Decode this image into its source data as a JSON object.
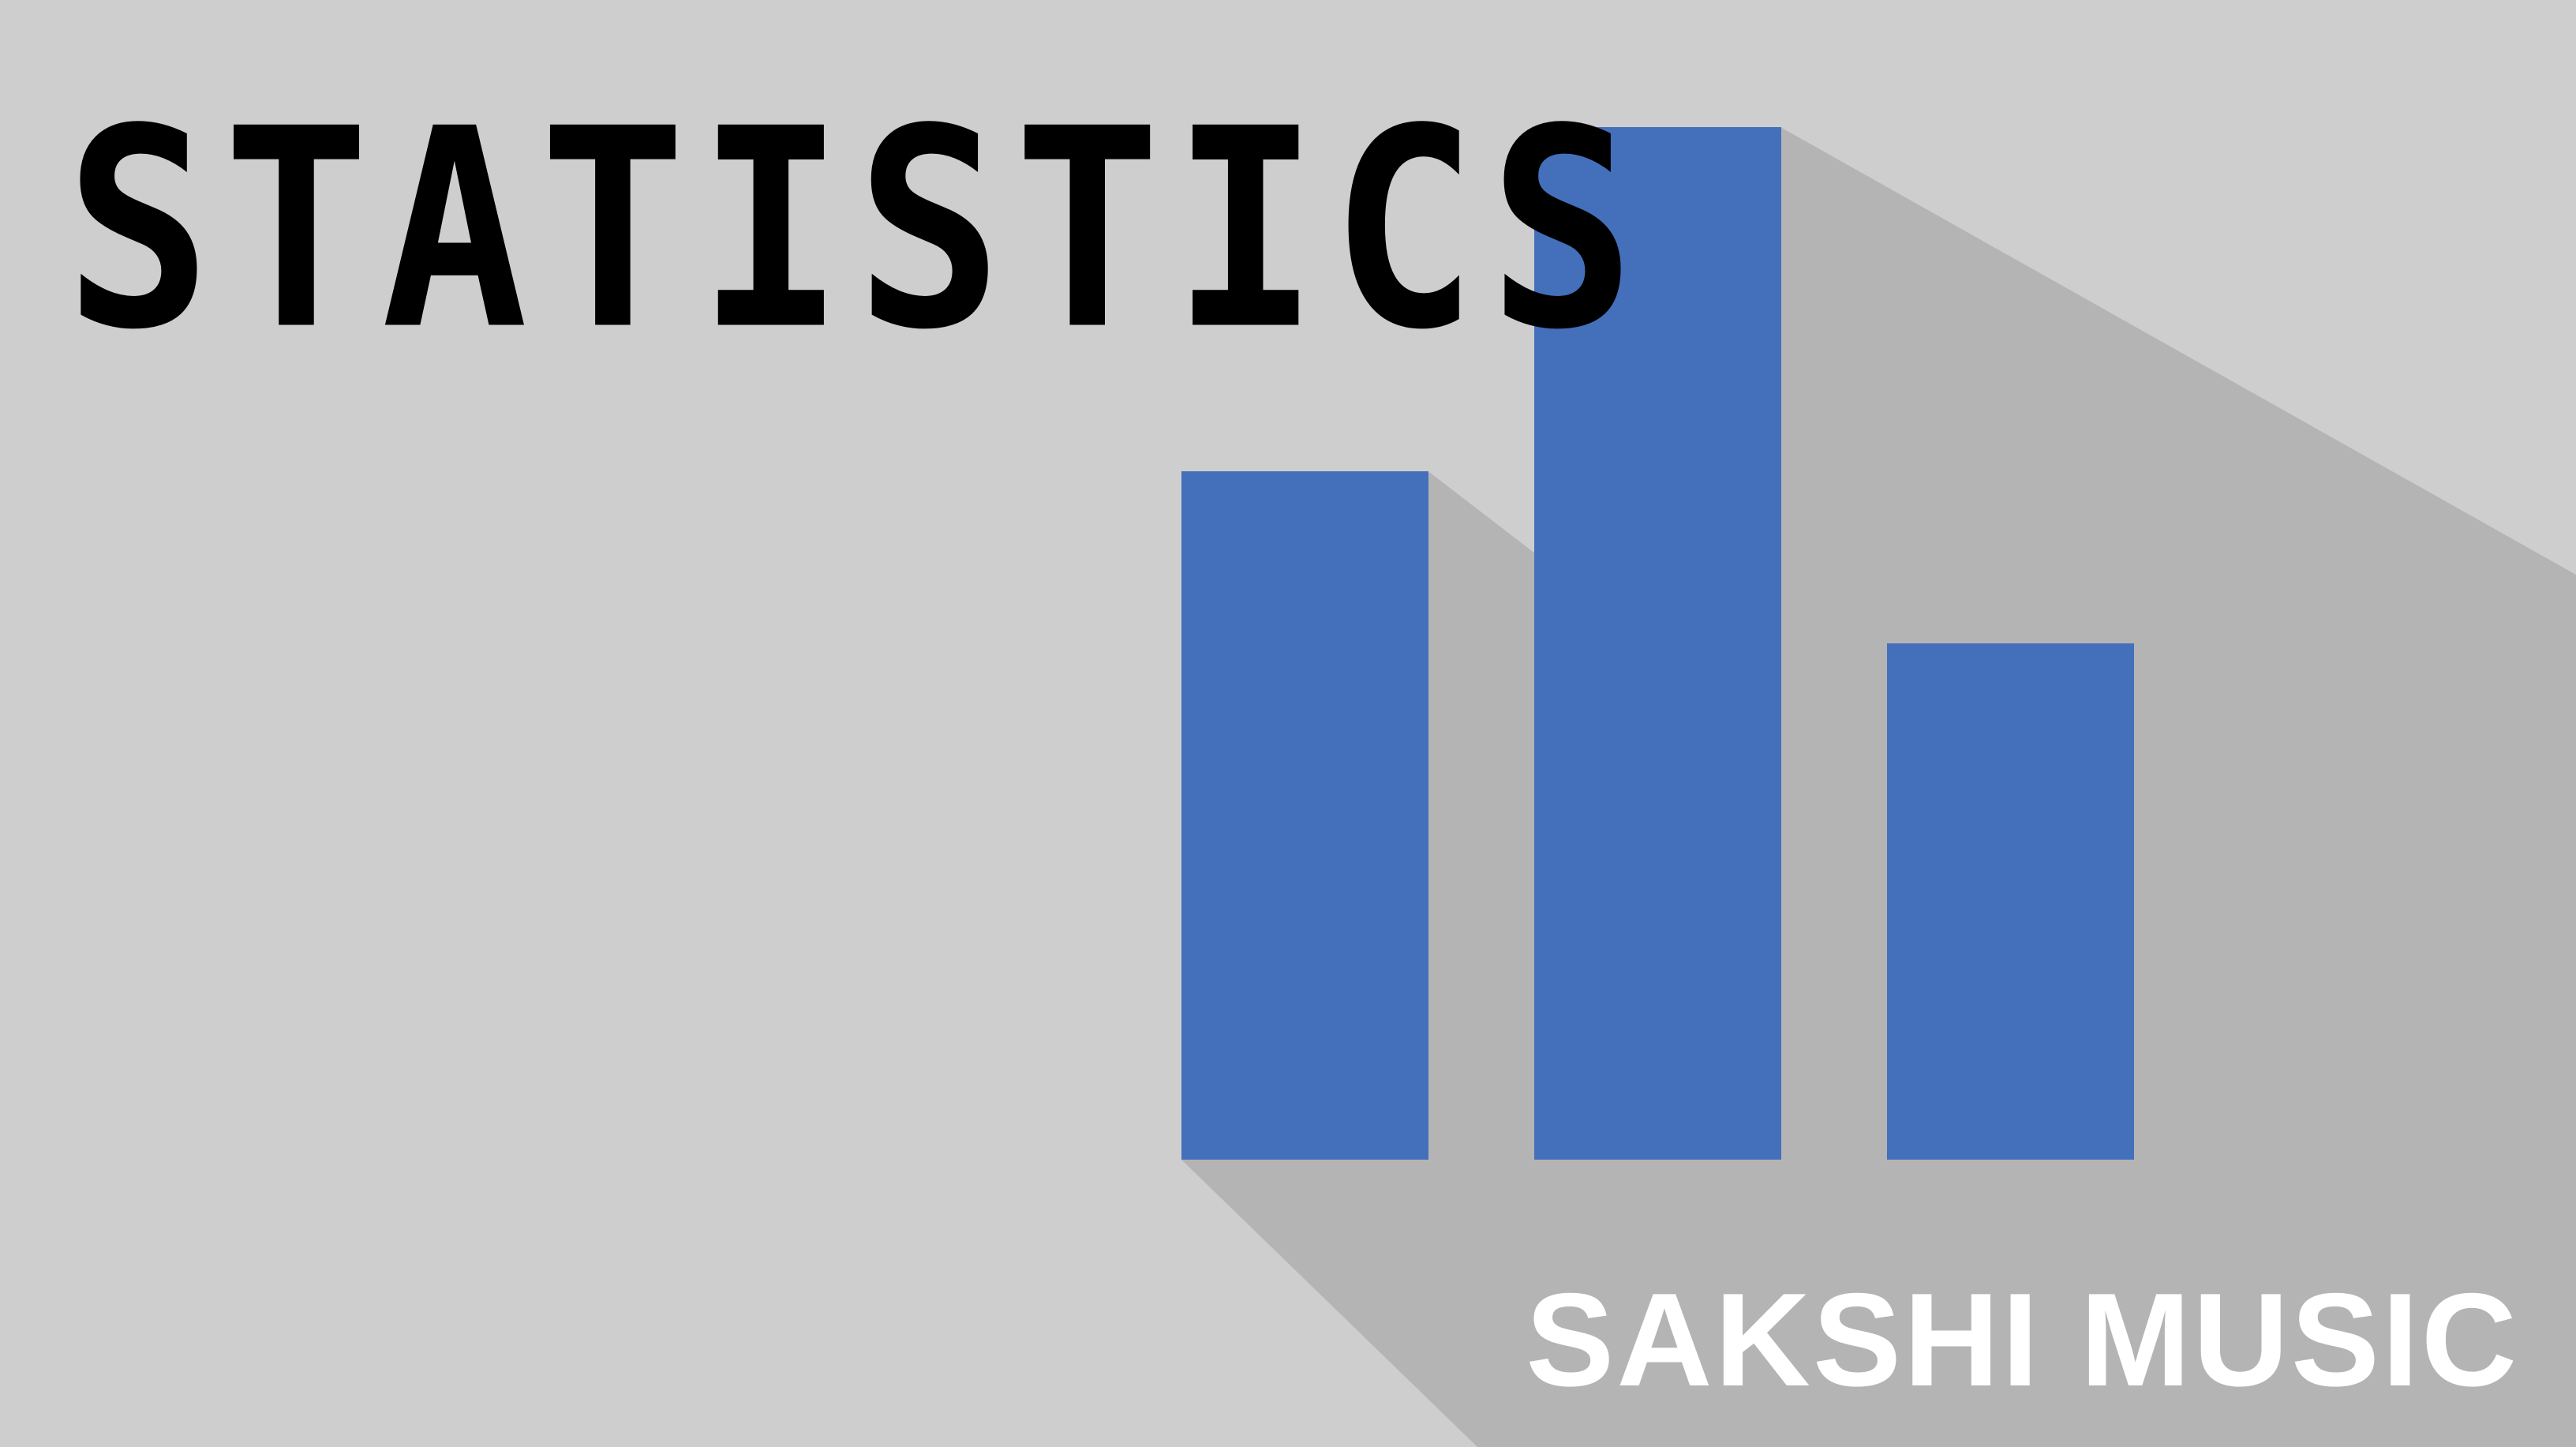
{
  "title": "STATISTICS",
  "brand": "SAKSHI MUSIC",
  "colors": {
    "background": "#cecece",
    "shadow": "#b4b4b4",
    "bar": "#4470bb",
    "title": "#000000",
    "brand": "#ffffff"
  },
  "graphic": {
    "icon": "bar-chart-icon",
    "relative_heights": [
      0.667,
      1.0,
      0.5
    ]
  }
}
